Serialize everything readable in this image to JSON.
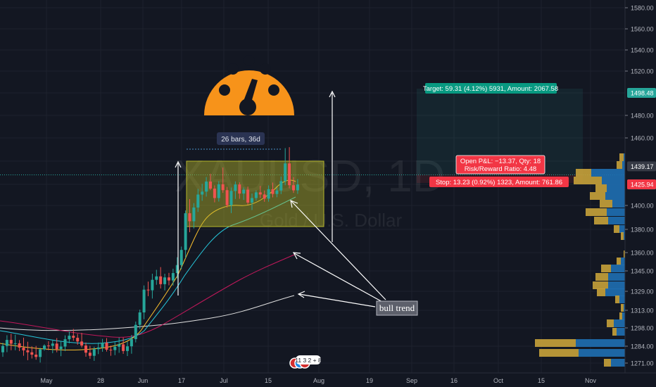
{
  "chart_data": {
    "type": "candlestick",
    "watermark": {
      "symbol_text": "XAUUSD, 1D",
      "subtitle_text": "Gold / U.S. Dollar"
    },
    "x_tick_labels": [
      "May",
      "28",
      "Jun",
      "17",
      "Jul",
      "15",
      "Aug",
      "19",
      "Sep",
      "16",
      "Oct",
      "15",
      "Nov"
    ],
    "y_tick_labels": [
      "1580.00",
      "1560.00",
      "1540.00",
      "1520.00",
      "1480.00",
      "1460.00",
      "1400.00",
      "1380.00",
      "1360.00",
      "1345.00",
      "1329.00",
      "1313.00",
      "1298.00",
      "1284.00",
      "1271.00"
    ],
    "price_tags": [
      {
        "value": "1498.48",
        "color": "#26a69a"
      },
      {
        "value": "1439.17",
        "color": "#363a45"
      },
      {
        "value": "1425.80",
        "color": "#26a69a"
      },
      {
        "value": "1425.94",
        "color": "#f23645"
      }
    ],
    "candles": [
      [
        1279.3,
        1286.6,
        1275.8,
        1284.2
      ],
      [
        1284.2,
        1292.4,
        1279.4,
        1288.8
      ],
      [
        1288.8,
        1293.5,
        1280.9,
        1285.9
      ],
      [
        1285.9,
        1292.8,
        1280.9,
        1286.2
      ],
      [
        1286.2,
        1288.7,
        1280.2,
        1282.9
      ],
      [
        1282.9,
        1290.5,
        1276.6,
        1280.8
      ],
      [
        1280.8,
        1287.4,
        1273.2,
        1279.3
      ],
      [
        1279.3,
        1283.9,
        1274.5,
        1277.5
      ],
      [
        1277.5,
        1284.2,
        1273.6,
        1275.7
      ],
      [
        1275.7,
        1282.8,
        1271.4,
        1281.6
      ],
      [
        1281.6,
        1285.5,
        1280.6,
        1284.5
      ],
      [
        1284.5,
        1287.8,
        1280.9,
        1284.3
      ],
      [
        1284.3,
        1289.0,
        1278.6,
        1286.0
      ],
      [
        1286.0,
        1290.2,
        1279.3,
        1281.7
      ],
      [
        1281.7,
        1288.1,
        1276.3,
        1283.7
      ],
      [
        1283.7,
        1292.3,
        1280.2,
        1289.3
      ],
      [
        1289.3,
        1295.3,
        1286.2,
        1292.0
      ],
      [
        1292.0,
        1297.2,
        1288.2,
        1290.4
      ],
      [
        1290.4,
        1293.4,
        1285.1,
        1287.6
      ],
      [
        1287.6,
        1294.2,
        1283.0,
        1284.5
      ],
      [
        1284.5,
        1286.8,
        1275.9,
        1279.0
      ],
      [
        1279.0,
        1284.3,
        1274.3,
        1276.6
      ],
      [
        1276.6,
        1283.6,
        1272.7,
        1281.7
      ],
      [
        1281.7,
        1286.8,
        1277.9,
        1283.0
      ],
      [
        1283.0,
        1289.6,
        1279.7,
        1286.7
      ],
      [
        1286.7,
        1290.2,
        1279.9,
        1281.3
      ],
      [
        1281.3,
        1284.5,
        1276.6,
        1281.0
      ],
      [
        1281.0,
        1287.1,
        1277.1,
        1283.6
      ],
      [
        1283.6,
        1290.6,
        1278.9,
        1285.4
      ],
      [
        1285.4,
        1290.6,
        1278.1,
        1280.3
      ],
      [
        1280.3,
        1287.6,
        1276.4,
        1283.9
      ],
      [
        1283.9,
        1292.6,
        1278.2,
        1289.4
      ],
      [
        1289.4,
        1303.4,
        1286.9,
        1300.6
      ],
      [
        1300.6,
        1313.6,
        1297.2,
        1311.2
      ],
      [
        1311.2,
        1333.6,
        1305.4,
        1330.3
      ],
      [
        1330.3,
        1336.6,
        1324.9,
        1329.8
      ],
      [
        1329.8,
        1342.8,
        1322.9,
        1338.0
      ],
      [
        1338.0,
        1345.9,
        1334.1,
        1340.7
      ],
      [
        1340.7,
        1348.1,
        1331.2,
        1334.6
      ],
      [
        1334.6,
        1342.8,
        1329.7,
        1339.9
      ],
      [
        1339.9,
        1343.5,
        1333.7,
        1337.5
      ],
      [
        1337.5,
        1346.8,
        1333.5,
        1343.3
      ],
      [
        1343.3,
        1356.2,
        1339.2,
        1349.8
      ],
      [
        1349.8,
        1365.2,
        1346.3,
        1362.3
      ],
      [
        1362.3,
        1395.8,
        1355.5,
        1393.5
      ],
      [
        1393.5,
        1407.8,
        1377.6,
        1386.8
      ],
      [
        1386.8,
        1402.9,
        1380.8,
        1398.3
      ],
      [
        1398.3,
        1420.3,
        1394.6,
        1413.4
      ],
      [
        1413.4,
        1426.3,
        1405.7,
        1417.0
      ],
      [
        1417.0,
        1431.3,
        1410.9,
        1428.0
      ],
      [
        1428.0,
        1433.7,
        1418.8,
        1420.7
      ],
      [
        1420.7,
        1424.7,
        1403.8,
        1409.1
      ],
      [
        1409.1,
        1428.3,
        1404.8,
        1426.0
      ],
      [
        1426.0,
        1438.3,
        1415.5,
        1418.8
      ],
      [
        1418.8,
        1422.8,
        1398.2,
        1400.3
      ],
      [
        1400.3,
        1422.1,
        1393.6,
        1417.8
      ],
      [
        1417.8,
        1428.1,
        1408.0,
        1425.8
      ],
      [
        1425.8,
        1427.4,
        1408.2,
        1414.6
      ],
      [
        1414.6,
        1422.2,
        1406.8,
        1419.4
      ],
      [
        1419.4,
        1423.2,
        1400.9,
        1403.5
      ],
      [
        1403.5,
        1414.7,
        1396.2,
        1409.1
      ],
      [
        1409.1,
        1418.6,
        1406.0,
        1416.1
      ],
      [
        1416.1,
        1424.1,
        1409.1,
        1413.5
      ],
      [
        1413.5,
        1418.4,
        1404.5,
        1408.4
      ],
      [
        1408.4,
        1424.6,
        1404.6,
        1420.0
      ],
      [
        1420.0,
        1427.2,
        1409.9,
        1414.1
      ],
      [
        1414.1,
        1422.0,
        1410.1,
        1418.4
      ],
      [
        1418.4,
        1431.7,
        1414.0,
        1428.3
      ],
      [
        1428.3,
        1452.5,
        1424.9,
        1441.3
      ],
      [
        1441.3,
        1453.2,
        1421.0,
        1424.9
      ],
      [
        1424.9,
        1431.2,
        1415.5,
        1418.6
      ],
      [
        1418.6,
        1429.8,
        1414.2,
        1425.8
      ]
    ]
  },
  "annotations": {
    "bars_range_label": "26 bars, 36d",
    "target_label": "Target: 59.31 (4.12%) 5931, Amount: 2067.58",
    "open_pl_line1": "Open P&L: −13.37, Qty: 18",
    "open_pl_line2": "Risk/Reward Ratio: 4.48",
    "stop_label": "Stop: 13.23 (0.92%) 1323, Amount: 761.86",
    "callout_text": "bull trend",
    "events_badge": "11 3 2 + 8"
  },
  "colors": {
    "background": "#131722",
    "up": "#26a69a",
    "down": "#ef5350",
    "gauge": "#f7931a",
    "range_box": "#b5b52a",
    "target": "#089981",
    "stop": "#f23645"
  }
}
